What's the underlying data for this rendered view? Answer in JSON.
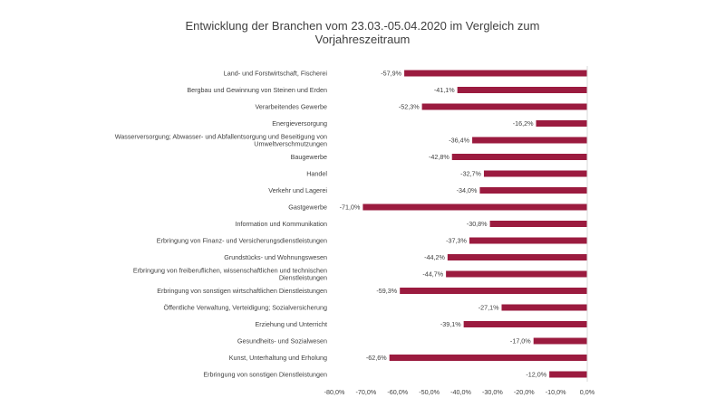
{
  "chart_data": {
    "type": "bar",
    "orientation": "horizontal",
    "title_lines": [
      "Entwicklung der Branchen vom 23.03.-05.04.2020 im Vergleich zum",
      "Vorjahreszeitraum"
    ],
    "categories": [
      "Land- und Forstwirtschaft, Fischerei",
      "Bergbau und Gewinnung von Steinen und Erden",
      "Verarbeitendes Gewerbe",
      "Energieversorgung",
      "Wasserversorgung; Abwasser- und Abfallentsorgung und Beseitigung von|Umweltverschmutzungen",
      "Baugewerbe",
      "Handel",
      "Verkehr und Lagerei",
      "Gastgewerbe",
      "Information und Kommunikation",
      "Erbringung von Finanz- und Versicherungsdienstleistungen",
      "Grundstücks- und Wohnungswesen",
      "Erbringung von freiberuflichen, wissenschaftlichen und technischen|Dienstleistungen",
      "Erbringung von sonstigen wirtschaftlichen Dienstleistungen",
      "Öffentliche Verwaltung, Verteidigung; Sozialversicherung",
      "Erziehung und Unterricht",
      "Gesundheits- und Sozialwesen",
      "Kunst, Unterhaltung und Erholung",
      "Erbringung von sonstigen Dienstleistungen"
    ],
    "values": [
      -57.9,
      -41.1,
      -52.3,
      -16.2,
      -36.4,
      -42.8,
      -32.7,
      -34.0,
      -71.0,
      -30.8,
      -37.3,
      -44.2,
      -44.7,
      -59.3,
      -27.1,
      -39.1,
      -17.0,
      -62.6,
      -12.0
    ],
    "data_labels": [
      "-57,9%",
      "-41,1%",
      "-52,3%",
      "-16,2%",
      "-36,4%",
      "-42,8%",
      "-32,7%",
      "-34,0%",
      "-71,0%",
      "-30,8%",
      "-37,3%",
      "-44,2%",
      "-44,7%",
      "-59,3%",
      "-27,1%",
      "-39,1%",
      "-17,0%",
      "-62,6%",
      "-12,0%"
    ],
    "x_ticks": [
      -80,
      -70,
      -60,
      -50,
      -40,
      -30,
      -20,
      -10,
      0
    ],
    "x_tick_labels": [
      "-80,0%",
      "-70,0%",
      "-60,0%",
      "-50,0%",
      "-40,0%",
      "-30,0%",
      "-20,0%",
      "-10,0%",
      "0,0%"
    ],
    "xlim": [
      -80,
      0
    ],
    "bar_color": "#9B1B3F",
    "grid": false,
    "legend": "none"
  }
}
